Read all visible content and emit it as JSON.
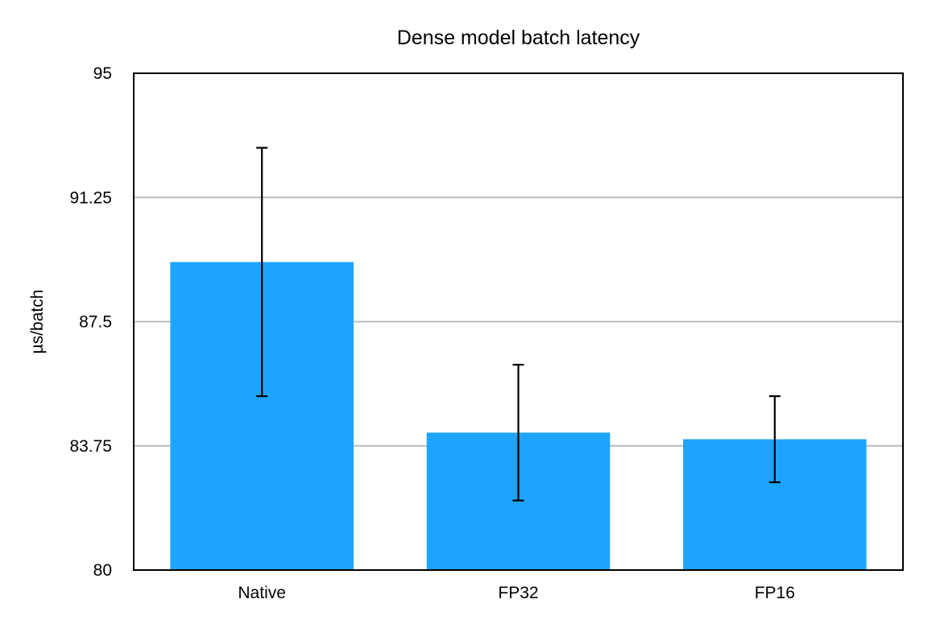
{
  "chart_data": {
    "type": "bar",
    "title": "Dense model batch latency",
    "xlabel": "",
    "ylabel": "µs/batch",
    "categories": [
      "Native",
      "FP32",
      "FP16"
    ],
    "series": [
      {
        "values": [
          89.3,
          84.15,
          83.95
        ],
        "error_low": [
          85.25,
          82.1,
          82.65
        ],
        "error_high": [
          92.75,
          86.2,
          85.25
        ]
      }
    ],
    "ylim": [
      80,
      95
    ],
    "yticks": [
      80,
      83.75,
      87.5,
      91.25,
      95
    ],
    "ytick_labels": [
      "80",
      "83.75",
      "87.5",
      "91.25",
      "95"
    ],
    "grid": true,
    "legend": "none",
    "colors": {
      "bar": "#1ea4fc",
      "grid": "#bbbbbb",
      "axis": "#000000",
      "error_bar": "#000000"
    }
  }
}
